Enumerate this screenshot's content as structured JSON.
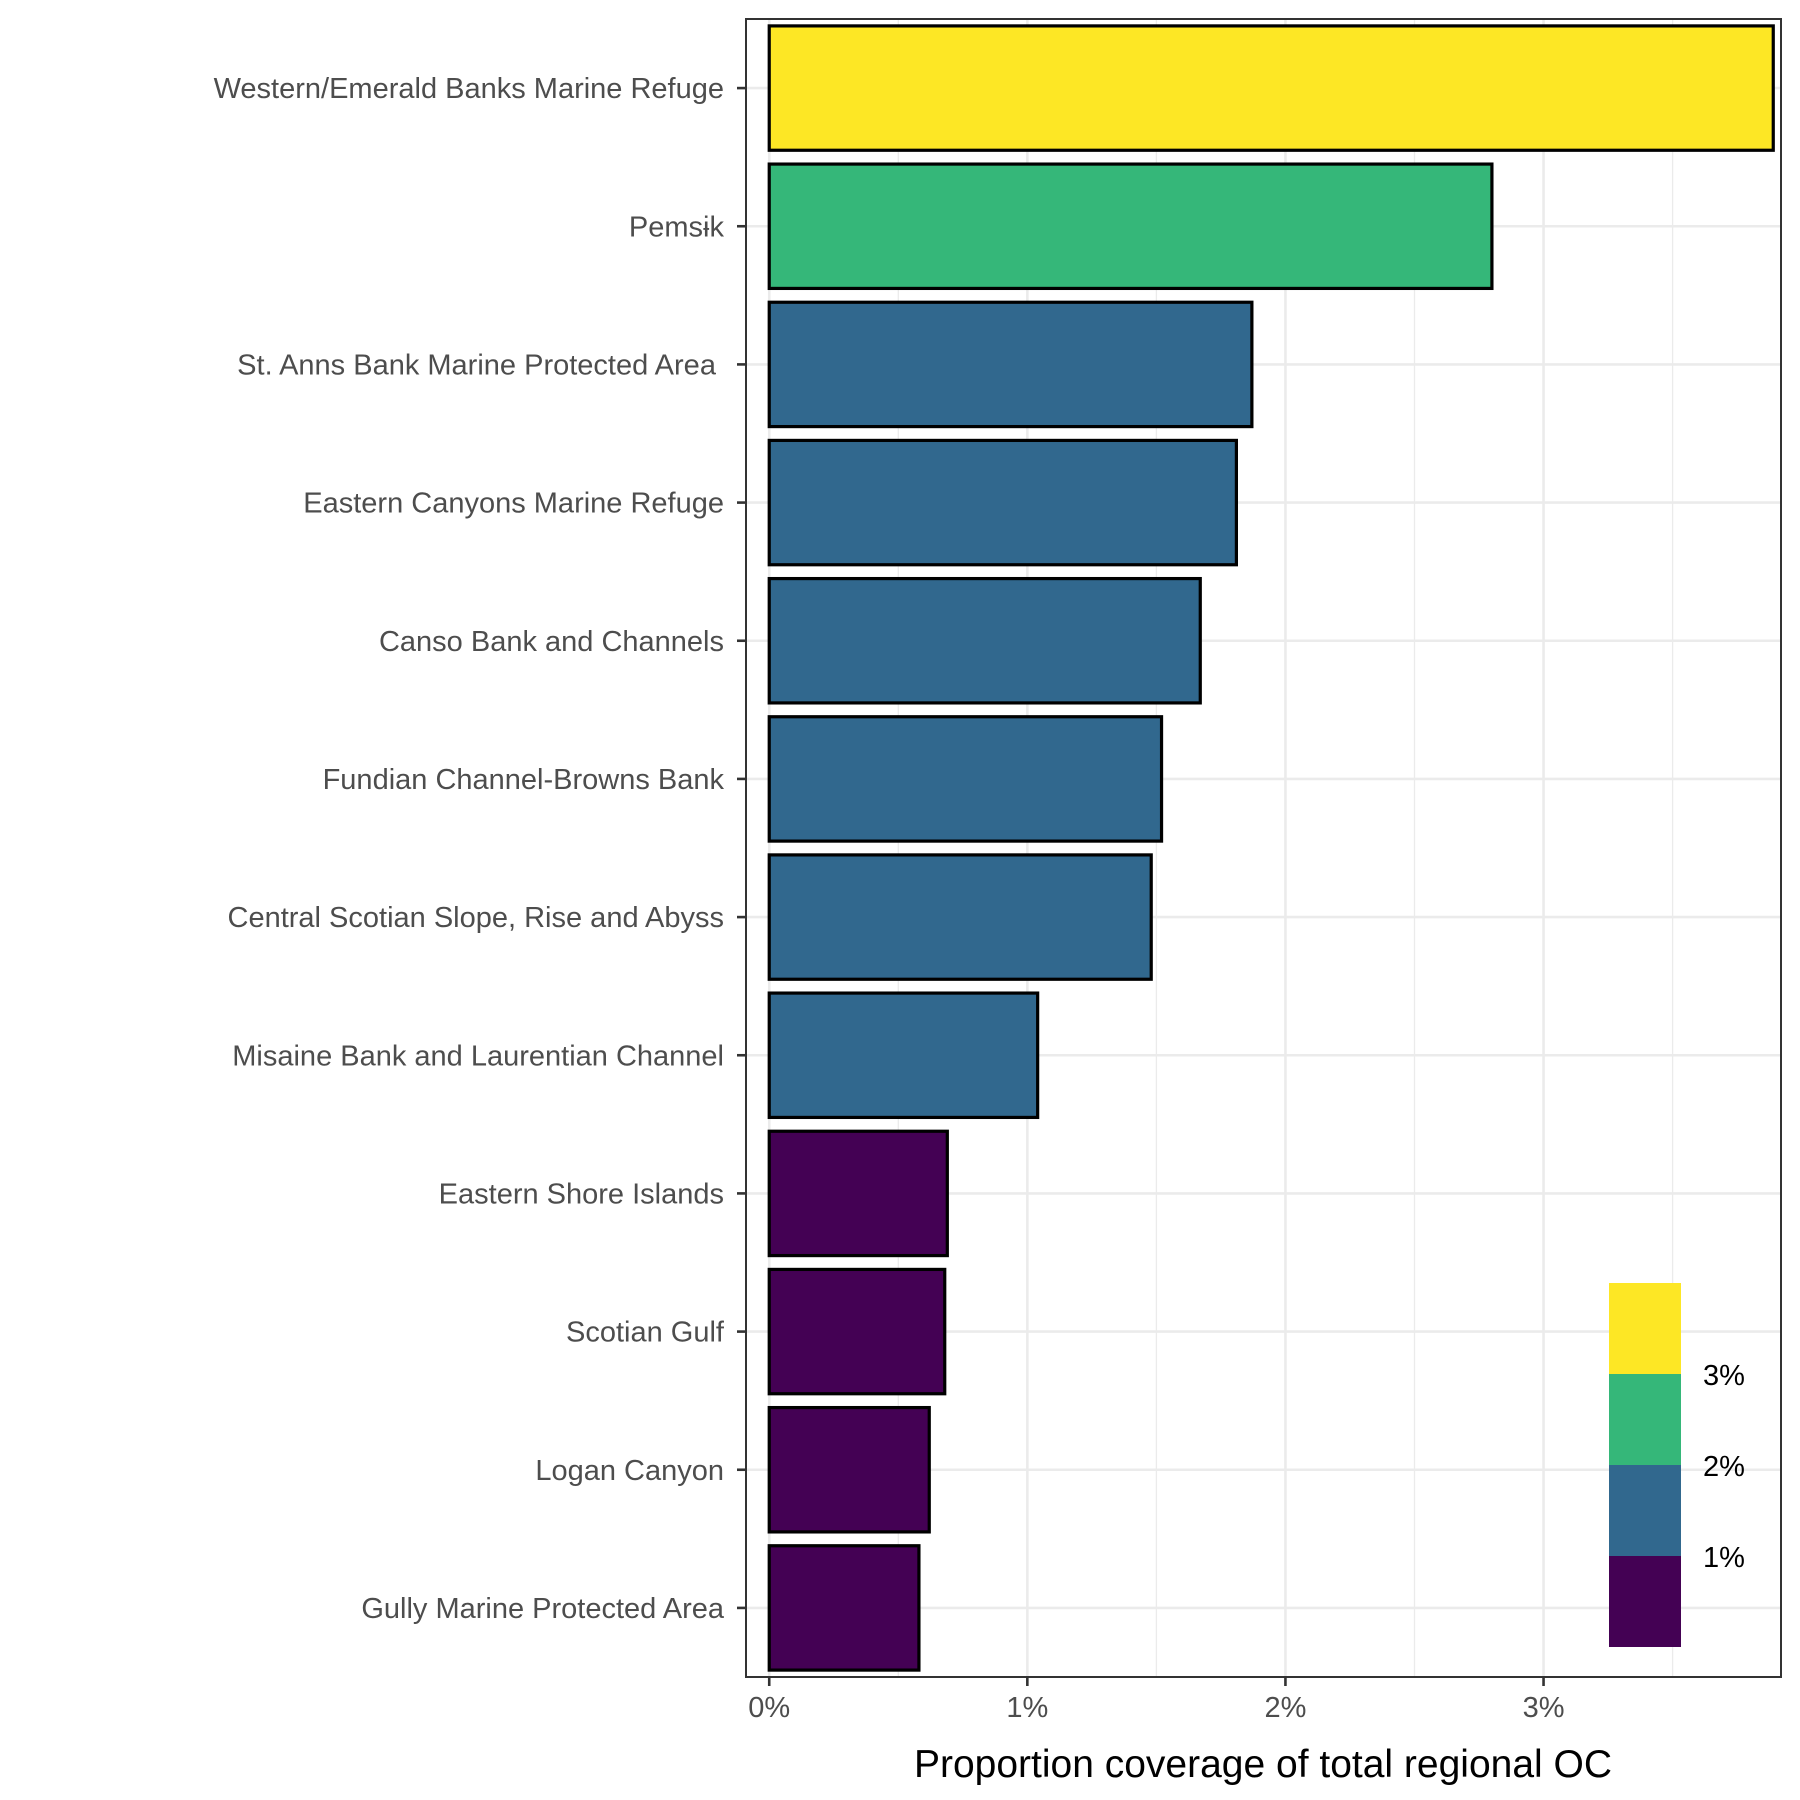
{
  "chart_data": {
    "type": "bar",
    "orientation": "horizontal",
    "categories": [
      "Western/Emerald Banks Marine Refuge",
      "Pemsɨk",
      "St. Anns Bank Marine Protected Area ",
      "Eastern Canyons Marine Refuge",
      "Canso Bank and Channels",
      "Fundian Channel-Browns Bank",
      "Central Scotian Slope, Rise and Abyss",
      "Misaine Bank and Laurentian Channel",
      "Eastern Shore Islands",
      "Scotian Gulf",
      "Logan Canyon",
      "Gully Marine Protected Area"
    ],
    "values": [
      3.89,
      2.8,
      1.87,
      1.81,
      1.67,
      1.52,
      1.48,
      1.04,
      0.69,
      0.68,
      0.62,
      0.58
    ],
    "value_unit": "%",
    "xlabel": "Proportion coverage of total regional OC",
    "ylabel": "",
    "title": "",
    "xlim": [
      -0.09,
      3.92
    ],
    "x_ticks": [
      "0%",
      "1%",
      "2%",
      "3%"
    ],
    "x_tick_values": [
      0,
      1,
      2,
      3
    ],
    "grid": true,
    "fill_scale": {
      "type": "binned",
      "breaks": [
        1,
        2,
        3
      ],
      "labels": [
        "1%",
        "2%",
        "3%"
      ],
      "colors": [
        "#440154",
        "#31688E",
        "#35B779",
        "#FDE725"
      ]
    },
    "bar_colors": [
      "#FDE725",
      "#35B779",
      "#31688E",
      "#31688E",
      "#31688E",
      "#31688E",
      "#31688E",
      "#31688E",
      "#440154",
      "#440154",
      "#440154",
      "#440154"
    ],
    "legend_position": "bottom-right inside"
  }
}
